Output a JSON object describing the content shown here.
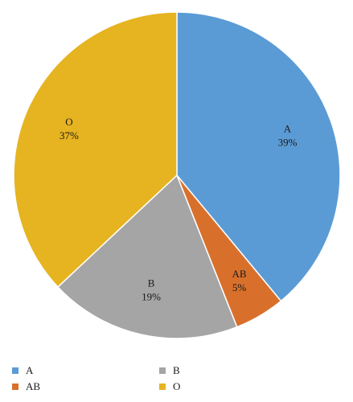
{
  "chart_data": {
    "type": "pie",
    "title": "",
    "slices": [
      {
        "label": "A",
        "value": 39,
        "value_label": "39%",
        "color": "#5b9bd5"
      },
      {
        "label": "AB",
        "value": 5,
        "value_label": "5%",
        "color": "#d8702c"
      },
      {
        "label": "B",
        "value": 19,
        "value_label": "19%",
        "color": "#a5a5a5"
      },
      {
        "label": "O",
        "value": 37,
        "value_label": "37%",
        "color": "#e6b321"
      }
    ],
    "start_angle_deg": 0,
    "direction": "clockwise",
    "legend_placement": "bottom",
    "legend": [
      {
        "label": "A",
        "color": "#5b9bd5"
      },
      {
        "label": "B",
        "color": "#a5a5a5"
      },
      {
        "label": "AB",
        "color": "#d8702c"
      },
      {
        "label": "O",
        "color": "#e6b321"
      }
    ]
  }
}
